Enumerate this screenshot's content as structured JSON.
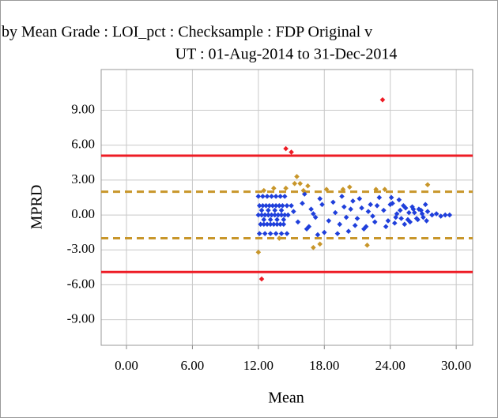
{
  "chart_data": {
    "type": "scatter",
    "title": "by Mean Grade : LOI_pct : Checksample : FDP Original v",
    "subtitle": "UT : 01-Aug-2014 to 31-Dec-2014",
    "x_label": "Mean",
    "y_label": "MPRD",
    "xlim": [
      -2.3,
      31.5
    ],
    "ylim": [
      -11.2,
      12.5
    ],
    "xticks": [
      {
        "value": 0,
        "label": "0.00"
      },
      {
        "value": 6,
        "label": "6.00"
      },
      {
        "value": 12,
        "label": "12.00"
      },
      {
        "value": 18,
        "label": "18.00"
      },
      {
        "value": 24,
        "label": "24.00"
      },
      {
        "value": 30,
        "label": "30.00"
      }
    ],
    "yticks": [
      {
        "value": -9,
        "label": "-9.00"
      },
      {
        "value": -6,
        "label": "-6.00"
      },
      {
        "value": -3,
        "label": "-3.00"
      },
      {
        "value": 0,
        "label": "0.00"
      },
      {
        "value": 3,
        "label": "3.00"
      },
      {
        "value": 6,
        "label": "6.00"
      },
      {
        "value": 9,
        "label": "9.00"
      }
    ],
    "grid": true,
    "reference_lines": [
      {
        "value": 5.1,
        "color": "#ee1c25",
        "style": "solid"
      },
      {
        "value": -4.9,
        "color": "#ee1c25",
        "style": "solid"
      },
      {
        "value": 2.0,
        "color": "#c8962a",
        "style": "dashed"
      },
      {
        "value": -2.0,
        "color": "#c8962a",
        "style": "dashed"
      }
    ],
    "series": [
      {
        "color": "#1f3fdb",
        "x": [
          12.0,
          12.3,
          12.6,
          12.9,
          13.2,
          13.5,
          13.8,
          14.1,
          14.4,
          14.7,
          12.1,
          12.4,
          12.7,
          13.0,
          13.3,
          13.6,
          13.9,
          14.2,
          14.6,
          15.0,
          12.2,
          12.5,
          12.8,
          13.1,
          13.4,
          13.7,
          14.0,
          14.3,
          12.0,
          12.4,
          12.8,
          13.2,
          13.6,
          14.0,
          14.4,
          12.1,
          12.6,
          13.1,
          13.6,
          14.1,
          14.6,
          12.3,
          12.9,
          13.5,
          14.1,
          12.5,
          13.1,
          13.7,
          14.3,
          15.2,
          15.6,
          16.0,
          16.4,
          16.8,
          17.2,
          17.6,
          18.0,
          16.2,
          16.6,
          17.0,
          17.4,
          17.8,
          18.4,
          18.8,
          19.0,
          19.4,
          19.8,
          20.2,
          20.6,
          21.0,
          21.4,
          21.8,
          22.2,
          22.6,
          23.0,
          19.2,
          19.6,
          20.0,
          20.4,
          20.8,
          21.2,
          21.6,
          22.0,
          22.4,
          22.8,
          23.4,
          23.8,
          24.2,
          24.6,
          25.0,
          25.4,
          25.8,
          26.2,
          26.6,
          27.0,
          27.4,
          27.8,
          28.2,
          28.6,
          29.0,
          29.4,
          23.6,
          24.0,
          24.4,
          24.8,
          25.2,
          25.6,
          26.0,
          26.4,
          26.8,
          27.2,
          24.1,
          24.5,
          24.9,
          25.3,
          25.7,
          26.1,
          26.5,
          26.9,
          27.3
        ],
        "values": [
          0,
          0,
          0,
          0,
          0,
          0,
          0,
          0,
          0,
          0,
          0.8,
          0.8,
          0.8,
          0.8,
          0.8,
          0.8,
          0.8,
          0.8,
          0.8,
          0.8,
          -0.8,
          -0.8,
          -0.8,
          -0.8,
          -0.8,
          -0.8,
          -0.8,
          -0.8,
          1.6,
          1.6,
          1.6,
          1.6,
          1.6,
          1.6,
          1.6,
          -1.6,
          -1.6,
          -1.6,
          -1.6,
          -1.6,
          -1.6,
          0.4,
          0.4,
          0.4,
          0.4,
          -0.4,
          -0.4,
          -0.4,
          -0.4,
          0.3,
          -0.6,
          1.0,
          -1.2,
          0.5,
          -0.2,
          1.4,
          -1.5,
          1.8,
          -1.0,
          0.1,
          -1.7,
          0.9,
          -0.5,
          1.1,
          0.2,
          -0.8,
          0.7,
          -1.4,
          1.2,
          -0.3,
          0.6,
          -1.0,
          0.9,
          -0.6,
          1.5,
          -1.6,
          1.6,
          -0.2,
          0.5,
          -0.9,
          1.4,
          -1.2,
          0.3,
          -0.1,
          0.8,
          0.4,
          -0.5,
          1.0,
          0.1,
          -0.3,
          0.6,
          -0.6,
          0.2,
          0.5,
          -0.2,
          0.3,
          0.0,
          0.1,
          -0.1,
          0.0,
          0.0,
          -1.0,
          0.9,
          -0.7,
          1.3,
          0.8,
          -0.4,
          0.7,
          -0.3,
          0.4,
          0.9,
          1.5,
          -0.2,
          0.4,
          -0.8,
          0.2,
          0.5,
          -0.4,
          0.1,
          -0.5
        ]
      },
      {
        "color": "#c8962a",
        "x": [
          12.0,
          13.4,
          13.9,
          15.5,
          15.3,
          15.8,
          16.5,
          17.0,
          17.6,
          18.2,
          19.7,
          20.3,
          21.9,
          22.7,
          23.5,
          27.4,
          14.5,
          16.1,
          12.5
        ],
        "values": [
          -3.2,
          2.3,
          -2.0,
          3.3,
          2.7,
          2.7,
          2.5,
          -2.8,
          -2.5,
          2.2,
          2.2,
          2.4,
          -2.6,
          2.2,
          2.2,
          2.6,
          2.3,
          2.1,
          2.1
        ]
      },
      {
        "color": "#ee1c25",
        "x": [
          14.5,
          15.0,
          23.3,
          12.3
        ],
        "values": [
          5.7,
          5.4,
          9.9,
          -5.5
        ]
      }
    ]
  }
}
